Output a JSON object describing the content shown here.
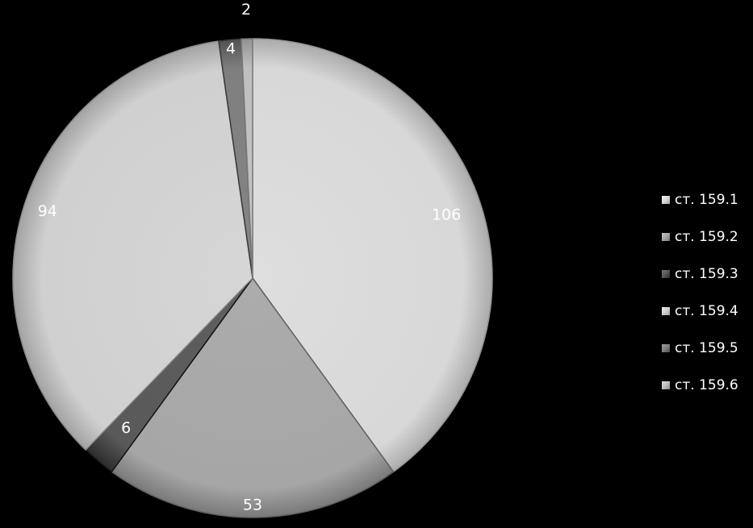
{
  "chart_data": {
    "type": "pie",
    "title": "",
    "categories": [
      "ст. 159.1",
      "ст. 159.2",
      "ст. 159.3",
      "ст. 159.4",
      "ст. 159.5",
      "ст. 159.6"
    ],
    "values": [
      106,
      53,
      6,
      94,
      4,
      2
    ],
    "legend_position": "right",
    "colors": [
      "#d8d8d8",
      "#a6a6a6",
      "#595959",
      "#d0d0d0",
      "#7f7f7f",
      "#bfbfbf"
    ],
    "start_angle_deg": 0,
    "direction": "clockwise"
  }
}
